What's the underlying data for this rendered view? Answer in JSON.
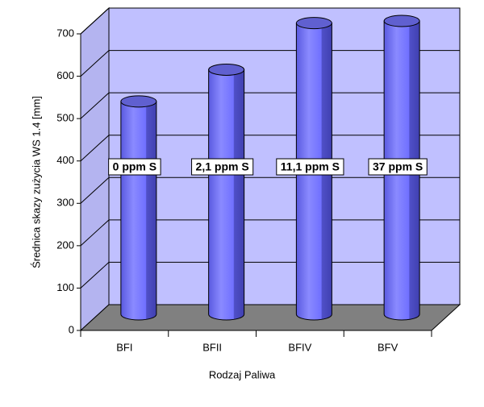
{
  "chart_data": {
    "type": "bar3d",
    "categories": [
      "BFI",
      "BFII",
      "BFIV",
      "BFV"
    ],
    "values": [
      510,
      585,
      695,
      700
    ],
    "annotations": [
      "0 ppm S",
      "2,1 ppm S",
      "11,1 ppm S",
      "37 ppm S"
    ],
    "color": "#7070ff",
    "ylim": [
      0,
      700
    ],
    "yticks": [
      0,
      100,
      200,
      300,
      400,
      500,
      600,
      700
    ],
    "y_label": "Średnica skazy zużycia WS 1.4 [mm]",
    "x_label": "Rodzaj Paliwa",
    "grid": true
  }
}
